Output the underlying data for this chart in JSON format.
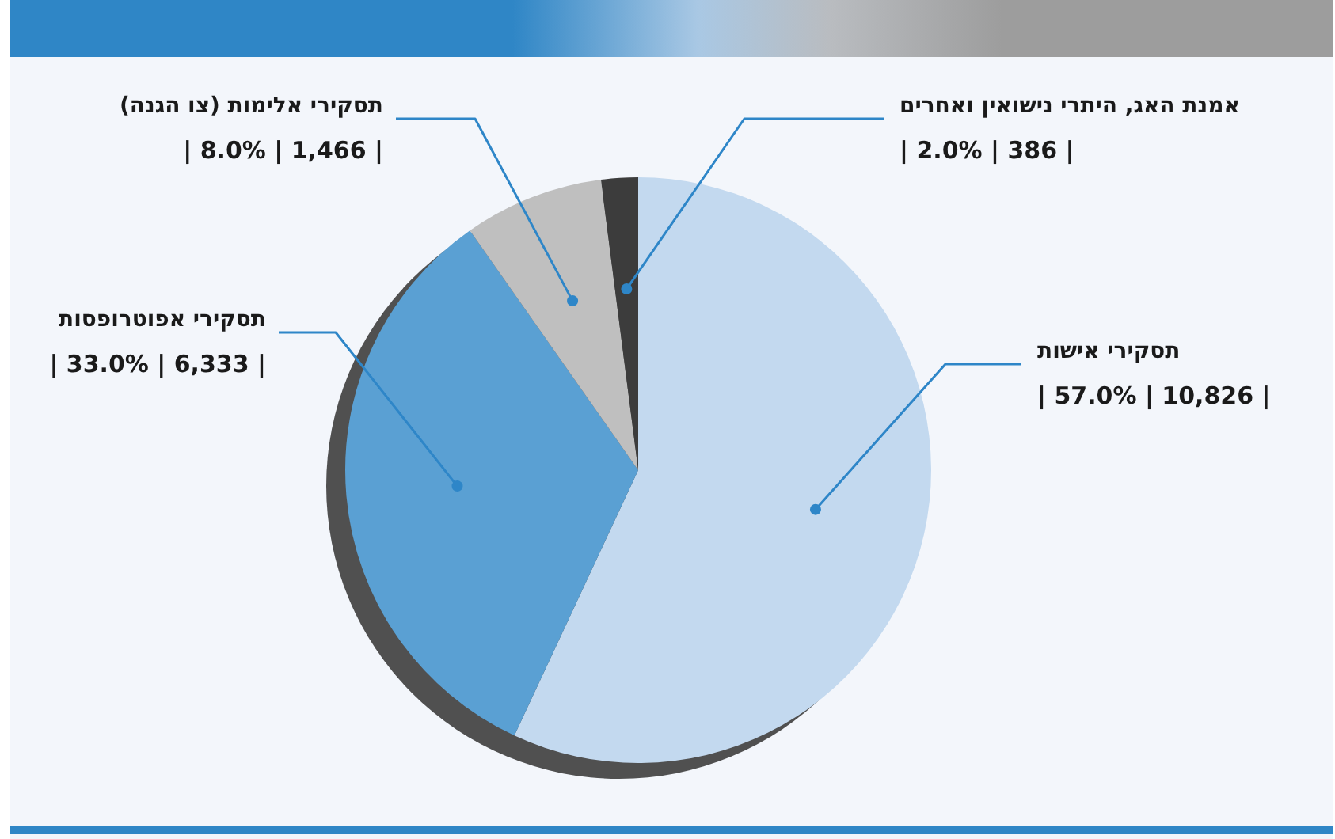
{
  "chart_data": {
    "type": "pie",
    "categories": [
      "תסקירי אישות",
      "תסקירי אפוטרופסות",
      "תסקירי אלימות (צו הגנה)",
      "אמנת האג, היתרי נישואין ואחרים"
    ],
    "values": [
      10826,
      6333,
      1466,
      386
    ],
    "colors": [
      "#c3d9ef",
      "#5aa0d3",
      "#bfbfbf",
      "#3c3c3c"
    ],
    "value_labels": [
      "| 57.0% | 10,826 |",
      "| 33.0% | 6,333 |",
      "| 8.0% | 1,466 |",
      "| 2.0% | 386 |"
    ],
    "legend": false
  }
}
